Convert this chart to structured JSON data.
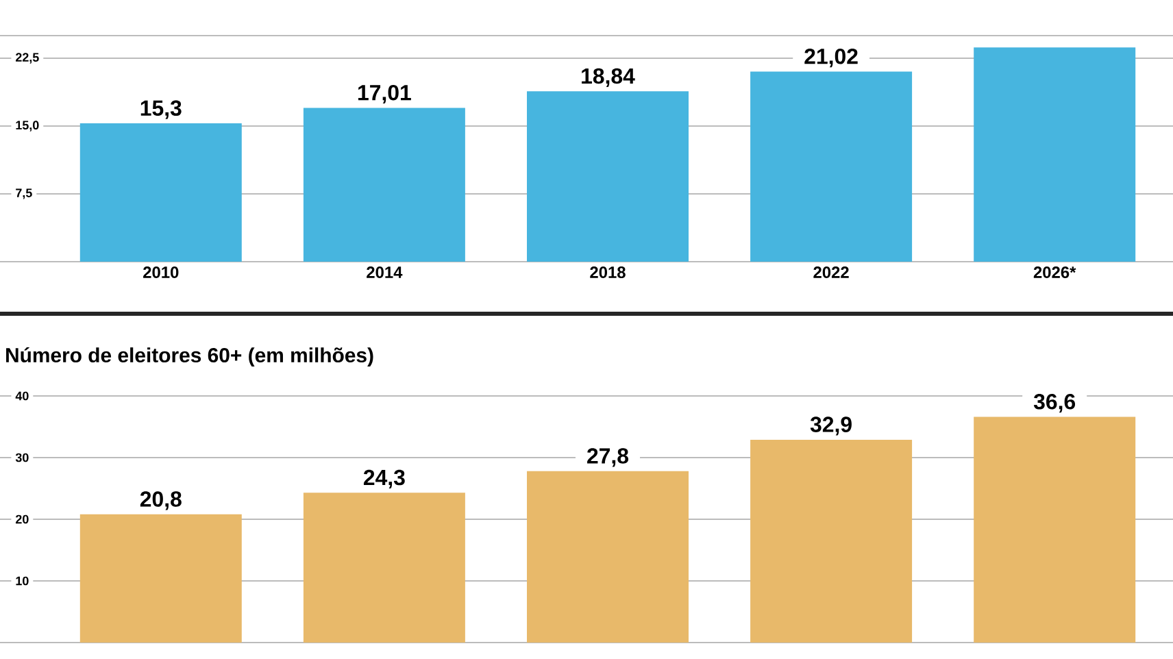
{
  "chart_data": [
    {
      "type": "bar",
      "categories": [
        "2010",
        "2014",
        "2018",
        "2022",
        "2026*"
      ],
      "values": [
        15.3,
        17.01,
        18.84,
        21.02,
        23.7
      ],
      "value_labels": [
        "15,3",
        "17,01",
        "18,84",
        "21,02",
        null
      ],
      "color": "#47b5df",
      "ylim": [
        0,
        25
      ],
      "yticks": [
        {
          "value": 7.5,
          "label": "7,5"
        },
        {
          "value": 15,
          "label": "15,0"
        },
        {
          "value": 22.5,
          "label": "22,5"
        },
        {
          "value": 25,
          "label": null
        }
      ],
      "grid": "y"
    },
    {
      "type": "bar",
      "title": "Número de eleitores 60+ (em milhões)",
      "categories": [
        null,
        null,
        null,
        null,
        null
      ],
      "values": [
        20.8,
        24.3,
        27.8,
        32.9,
        36.6
      ],
      "value_labels": [
        "20,8",
        "24,3",
        "27,8",
        "32,9",
        "36,6"
      ],
      "color": "#e8b96a",
      "ylim": [
        0,
        40
      ],
      "yticks": [
        10,
        20,
        30,
        40
      ],
      "grid": "y"
    }
  ]
}
